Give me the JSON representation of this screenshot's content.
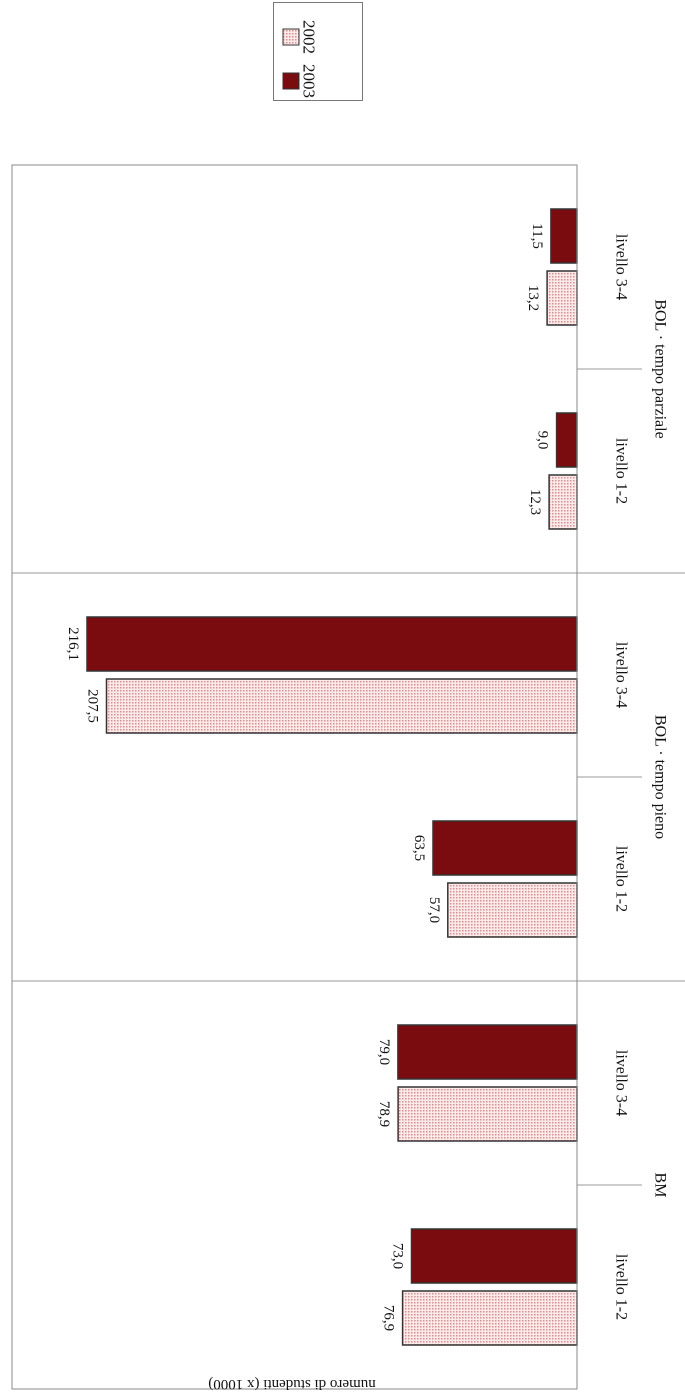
{
  "chart_data": {
    "type": "bar",
    "orientation": "rotated-90-clockwise",
    "ylabel": "numero di studenti (x 1000)",
    "ylim": [
      0,
      250
    ],
    "grid": false,
    "legend_position": "top-right",
    "groups": [
      {
        "label": "BM",
        "categories": [
          "livello 1-2",
          "livello 3-4"
        ]
      },
      {
        "label": "BOL · tempo pieno",
        "categories": [
          "livello 1-2",
          "livello 3-4"
        ]
      },
      {
        "label": "BOL · tempo parziale",
        "categories": [
          "livello 1-2",
          "livello 3-4"
        ]
      }
    ],
    "categories": [
      "livello 1-2",
      "livello 3-4",
      "livello 1-2",
      "livello 3-4",
      "livello 1-2",
      "livello 3-4"
    ],
    "series": [
      {
        "name": "2002",
        "values": [
          76.9,
          78.9,
          57.0,
          207.5,
          12.3,
          13.2
        ],
        "labels": [
          "76,9",
          "78,9",
          "57,0",
          "207,5",
          "12,3",
          "13,2"
        ]
      },
      {
        "name": "2003",
        "values": [
          73.0,
          79.0,
          63.5,
          216.1,
          9.0,
          11.5
        ],
        "labels": [
          "73,0",
          "79,0",
          "63,5",
          "216,1",
          "9,0",
          "11,5"
        ]
      }
    ],
    "colors": {
      "2002": "#f3c9c9",
      "2003": "#7a0c10",
      "outline": "#333333"
    }
  }
}
